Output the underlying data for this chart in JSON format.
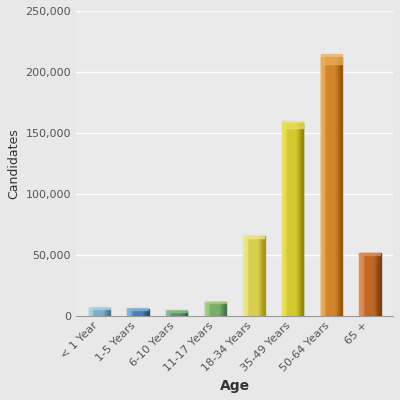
{
  "categories": [
    "< 1 Year",
    "1-5 Years",
    "6-10 Years",
    "11-17 Years",
    "18-34 Years",
    "35-49 Years",
    "50-64 Years",
    "65 +"
  ],
  "values": [
    6500,
    5500,
    4000,
    11000,
    65000,
    158000,
    212000,
    51000
  ],
  "bar_colors_main": [
    "#7AAFC4",
    "#4A82B8",
    "#5A9468",
    "#7AAF6A",
    "#D8CF50",
    "#D4C830",
    "#D4842A",
    "#C06828"
  ],
  "bar_colors_light": [
    "#B0D4E8",
    "#88B4D8",
    "#90BF92",
    "#AACF8A",
    "#F0E890",
    "#EAE060",
    "#EAB060",
    "#E09060"
  ],
  "bar_colors_dark": [
    "#4A7A96",
    "#2A5080",
    "#3A6844",
    "#4A7848",
    "#A89818",
    "#988808",
    "#985808",
    "#804010"
  ],
  "title": "",
  "xlabel": "Age",
  "ylabel": "Candidates",
  "ylim": [
    0,
    250000
  ],
  "yticks": [
    0,
    50000,
    100000,
    150000,
    200000,
    250000
  ],
  "ytick_labels": [
    "0",
    "50,000",
    "100,000",
    "150,000",
    "200,000",
    "250,000"
  ],
  "background_color": "#E8E8E8",
  "plot_bg_color": "#EAEAEA",
  "grid_color": "#FFFFFF",
  "xlabel_fontsize": 10,
  "ylabel_fontsize": 9,
  "tick_fontsize": 8
}
